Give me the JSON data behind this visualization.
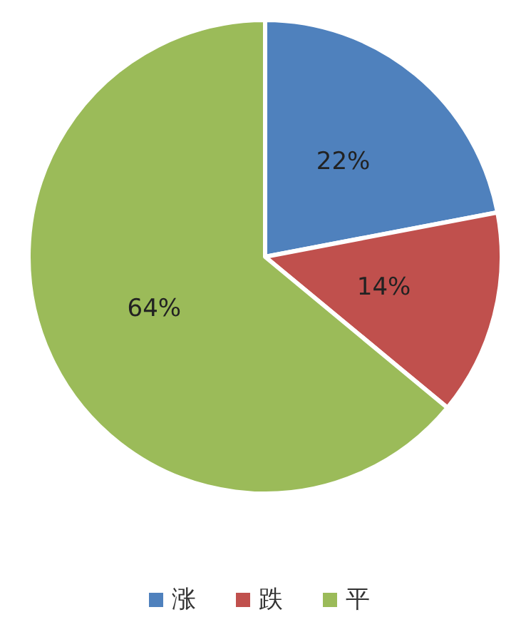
{
  "chart_data": {
    "type": "pie",
    "categories": [
      "涨",
      "跌",
      "平"
    ],
    "values": [
      22,
      14,
      64
    ],
    "colors": [
      "#4f81bd",
      "#c0504d",
      "#9bbb59"
    ],
    "value_labels": [
      "22%",
      "14%",
      "64%"
    ],
    "legend": "bottom"
  }
}
